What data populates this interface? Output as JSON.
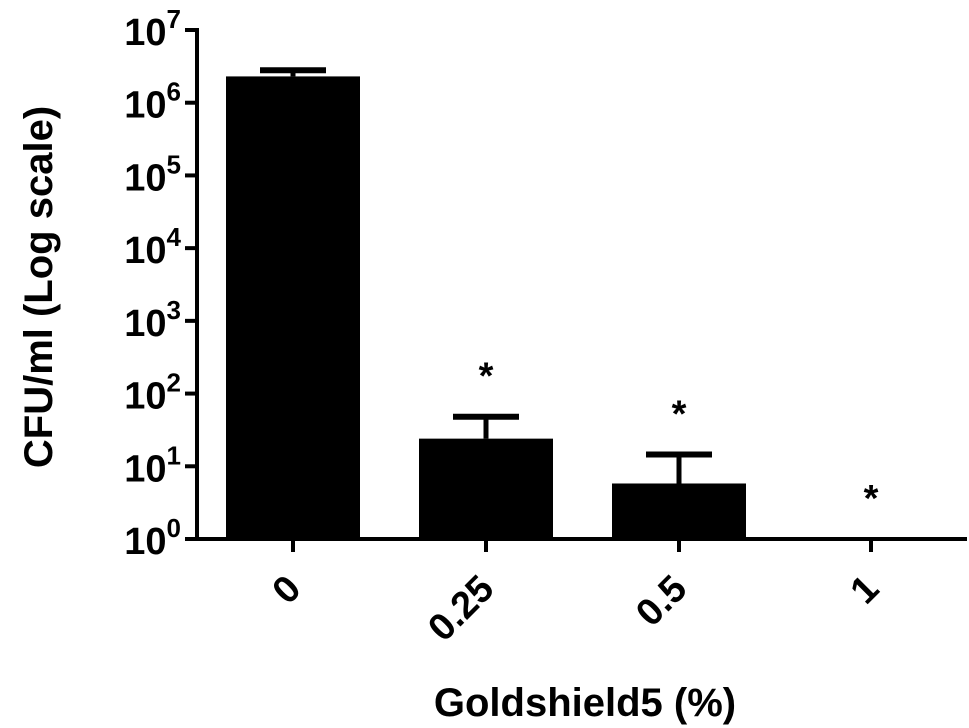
{
  "chart_data": {
    "type": "bar",
    "categories": [
      "0",
      "0.25",
      "0.5",
      "1"
    ],
    "values": [
      2300000,
      24,
      5.8,
      1
    ],
    "error_upper": [
      2800000,
      48,
      14.5,
      1
    ],
    "annotations": [
      "",
      "*",
      "*",
      "*"
    ],
    "xlabel": "Goldshield5 (%)",
    "ylabel": "CFU/ml (Log scale)",
    "yscale": "log",
    "ylim": [
      1,
      10000000
    ],
    "yticks": [
      {
        "base": "10",
        "exp": "0"
      },
      {
        "base": "10",
        "exp": "1"
      },
      {
        "base": "10",
        "exp": "2"
      },
      {
        "base": "10",
        "exp": "3"
      },
      {
        "base": "10",
        "exp": "4"
      },
      {
        "base": "10",
        "exp": "5"
      },
      {
        "base": "10",
        "exp": "6"
      },
      {
        "base": "10",
        "exp": "7"
      }
    ],
    "grid": false,
    "bar_color": "#000000"
  }
}
